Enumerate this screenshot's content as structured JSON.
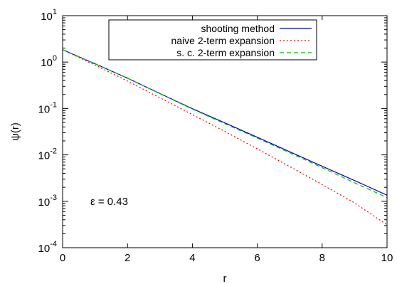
{
  "chart_data": {
    "type": "line",
    "title": "",
    "xlabel": "r",
    "ylabel": "ψ(r)",
    "xscale": "linear",
    "yscale": "log",
    "xlim": [
      0,
      10
    ],
    "ylim": [
      0.0001,
      10
    ],
    "grid": false,
    "legend_position": "top-right",
    "x_ticks": [
      {
        "value": 0,
        "label": "0"
      },
      {
        "value": 2,
        "label": "2"
      },
      {
        "value": 4,
        "label": "4"
      },
      {
        "value": 6,
        "label": "6"
      },
      {
        "value": 8,
        "label": "8"
      },
      {
        "value": 10,
        "label": "10"
      }
    ],
    "y_ticks": [
      {
        "value": 10,
        "base": "10",
        "exp": "1"
      },
      {
        "value": 1,
        "base": "10",
        "exp": "0"
      },
      {
        "value": 0.1,
        "base": "10",
        "exp": "-1"
      },
      {
        "value": 0.01,
        "base": "10",
        "exp": "-2"
      },
      {
        "value": 0.001,
        "base": "10",
        "exp": "-3"
      },
      {
        "value": 0.0001,
        "base": "10",
        "exp": "-4"
      }
    ],
    "annotation": "ε = 0.43",
    "series": [
      {
        "name": "shooting method",
        "color": "#0000cc",
        "dash": "solid",
        "x": [
          0,
          1,
          2,
          3,
          4,
          5,
          6,
          7,
          8,
          9,
          10
        ],
        "y": [
          1.85,
          0.92,
          0.45,
          0.21,
          0.099,
          0.049,
          0.024,
          0.0117,
          0.0057,
          0.0028,
          0.00135
        ]
      },
      {
        "name": "naive 2-term expansion",
        "color": "#ff0000",
        "dash": "dotted",
        "x": [
          0,
          1,
          2,
          3,
          4,
          5,
          6,
          7,
          8,
          9,
          10
        ],
        "y": [
          1.85,
          0.86,
          0.39,
          0.17,
          0.074,
          0.032,
          0.0135,
          0.0056,
          0.0023,
          0.00092,
          0.00031
        ]
      },
      {
        "name": "s. c. 2-term expansion",
        "color": "#00bb00",
        "dash": "dashed",
        "x": [
          0,
          1,
          2,
          3,
          4,
          5,
          6,
          7,
          8,
          9,
          10
        ],
        "y": [
          1.85,
          0.92,
          0.45,
          0.208,
          0.097,
          0.047,
          0.023,
          0.0111,
          0.0053,
          0.0025,
          0.0012
        ]
      }
    ]
  }
}
